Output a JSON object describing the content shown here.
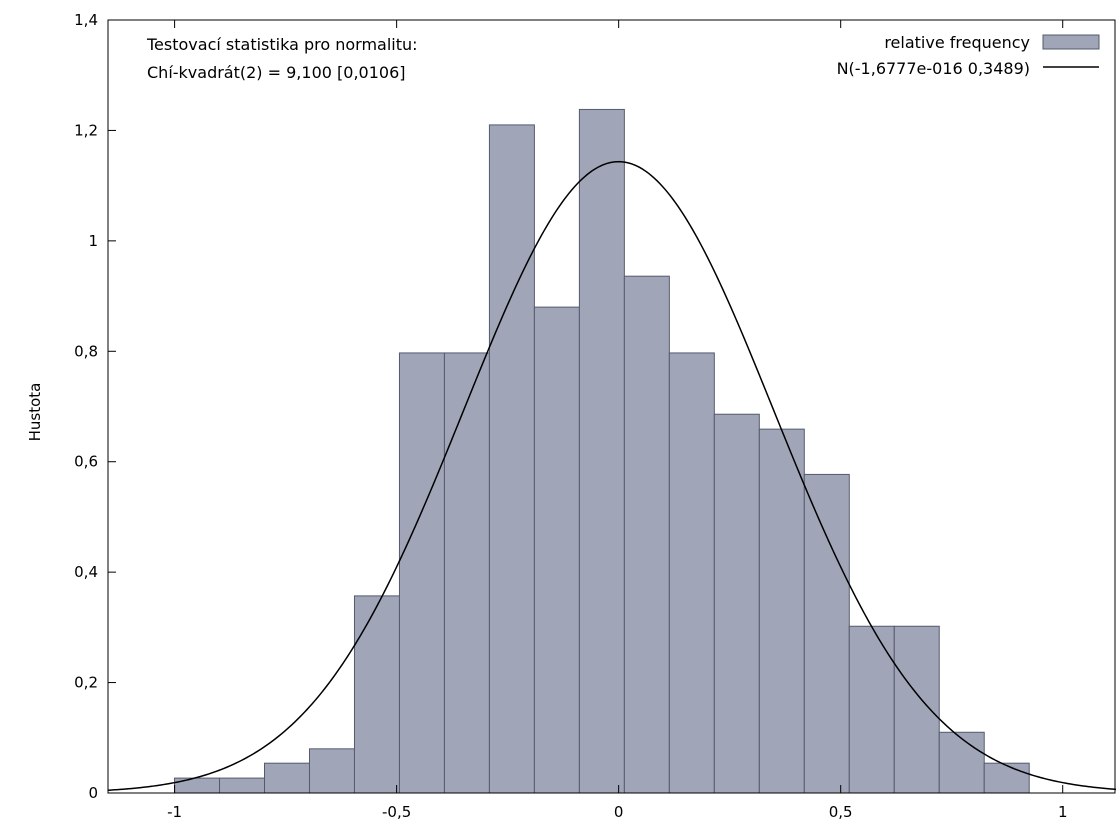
{
  "chart_data": {
    "type": "bar",
    "title": "",
    "xlabel": "",
    "ylabel": "Hustota",
    "xlim": [
      -1.15,
      1.12
    ],
    "ylim": [
      0,
      1.4
    ],
    "grid": false,
    "legend_position": "top-right",
    "x_ticks": [
      -1,
      -0.5,
      0,
      0.5,
      1
    ],
    "x_tick_labels": [
      "-1",
      "-0,5",
      "0",
      "0,5",
      "1"
    ],
    "y_ticks": [
      0,
      0.2,
      0.4,
      0.6,
      0.8,
      1.0,
      1.2,
      1.4
    ],
    "y_tick_labels": [
      "0",
      "0,2",
      "0,4",
      "0,6",
      "0,8",
      "1",
      "1,2",
      "1,4"
    ],
    "annotations": [
      "Testovací statistika pro normalitu:",
      "Chí-kvadrát(2) = 9,100 [0,0106]"
    ],
    "series": [
      {
        "name": "relative frequency",
        "kind": "histogram",
        "color": "#a0a6b8",
        "edge_color": "#555a6e",
        "bin_width": 0.1013,
        "bin_centers": [
          -0.9495,
          -0.8482,
          -0.7469,
          -0.6456,
          -0.5443,
          -0.443,
          -0.3417,
          -0.2404,
          -0.1391,
          -0.0378,
          0.0635,
          0.1648,
          0.2661,
          0.3674,
          0.4687,
          0.57,
          0.6713,
          0.7726,
          0.8739
        ],
        "values": [
          0.027,
          0.027,
          0.054,
          0.08,
          0.357,
          0.797,
          0.797,
          1.21,
          0.88,
          1.238,
          0.936,
          0.797,
          0.686,
          0.659,
          0.577,
          0.302,
          0.302,
          0.11,
          0.054
        ]
      },
      {
        "name": "N(-1,6777e-016 0,3489)",
        "kind": "normal_pdf",
        "color": "#000000",
        "mean": -1.6777e-16,
        "sd": 0.3489
      }
    ]
  }
}
